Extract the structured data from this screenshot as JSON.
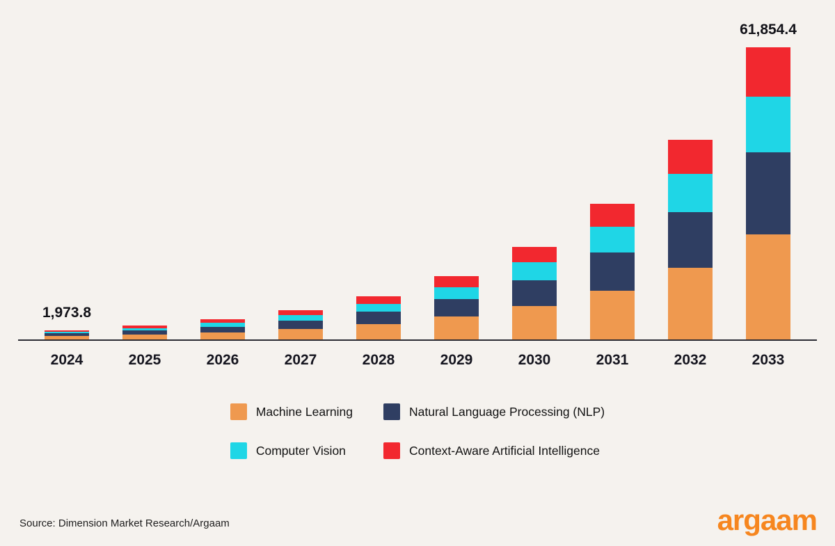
{
  "background": "#f5f2ee",
  "chart_data": {
    "type": "bar",
    "subtype": "stacked",
    "title": "",
    "xlabel": "",
    "ylabel": "",
    "grid": false,
    "legend_position": "bottom",
    "ylim": [
      0,
      62000
    ],
    "categories": [
      "2024",
      "2025",
      "2026",
      "2027",
      "2028",
      "2029",
      "2030",
      "2031",
      "2032",
      "2033"
    ],
    "series": [
      {
        "name": "Machine Learning",
        "color": "#ef994f",
        "values": [
          710.6,
          1042.1,
          1528.2,
          2241.1,
          3286.6,
          4819.8,
          7068.2,
          10365.6,
          15201.1,
          22267.6
        ]
      },
      {
        "name": "Natural Language Processing (NLP)",
        "color": "#2f3e62",
        "values": [
          552.7,
          810.5,
          1188.6,
          1743.1,
          2556.2,
          3748.7,
          5497.5,
          8062.1,
          11823.1,
          17319.2
        ]
      },
      {
        "name": "Computer Vision",
        "color": "#1fd6e6",
        "values": [
          375.0,
          550.0,
          806.6,
          1182.8,
          1734.6,
          2543.8,
          3730.5,
          5470.7,
          8022.8,
          11752.3
        ]
      },
      {
        "name": "Context-Aware Artificial Intelligence",
        "color": "#f2282f",
        "values": [
          335.5,
          492.1,
          721.7,
          1058.3,
          1552.0,
          2276.0,
          3337.8,
          4894.9,
          7178.3,
          10515.3
        ]
      }
    ],
    "totals": [
      1973.8,
      2894.7,
      4245.1,
      6225.3,
      9129.4,
      13388.3,
      19634.0,
      28793.3,
      42225.3,
      61854.4
    ],
    "annotations": [
      {
        "category_index": 0,
        "text": "1,973.8"
      },
      {
        "category_index": 9,
        "text": "61,854.4"
      }
    ]
  },
  "footer": {
    "source": "Source: Dimension Market Research/Argaam",
    "logo_text": "argaam"
  }
}
